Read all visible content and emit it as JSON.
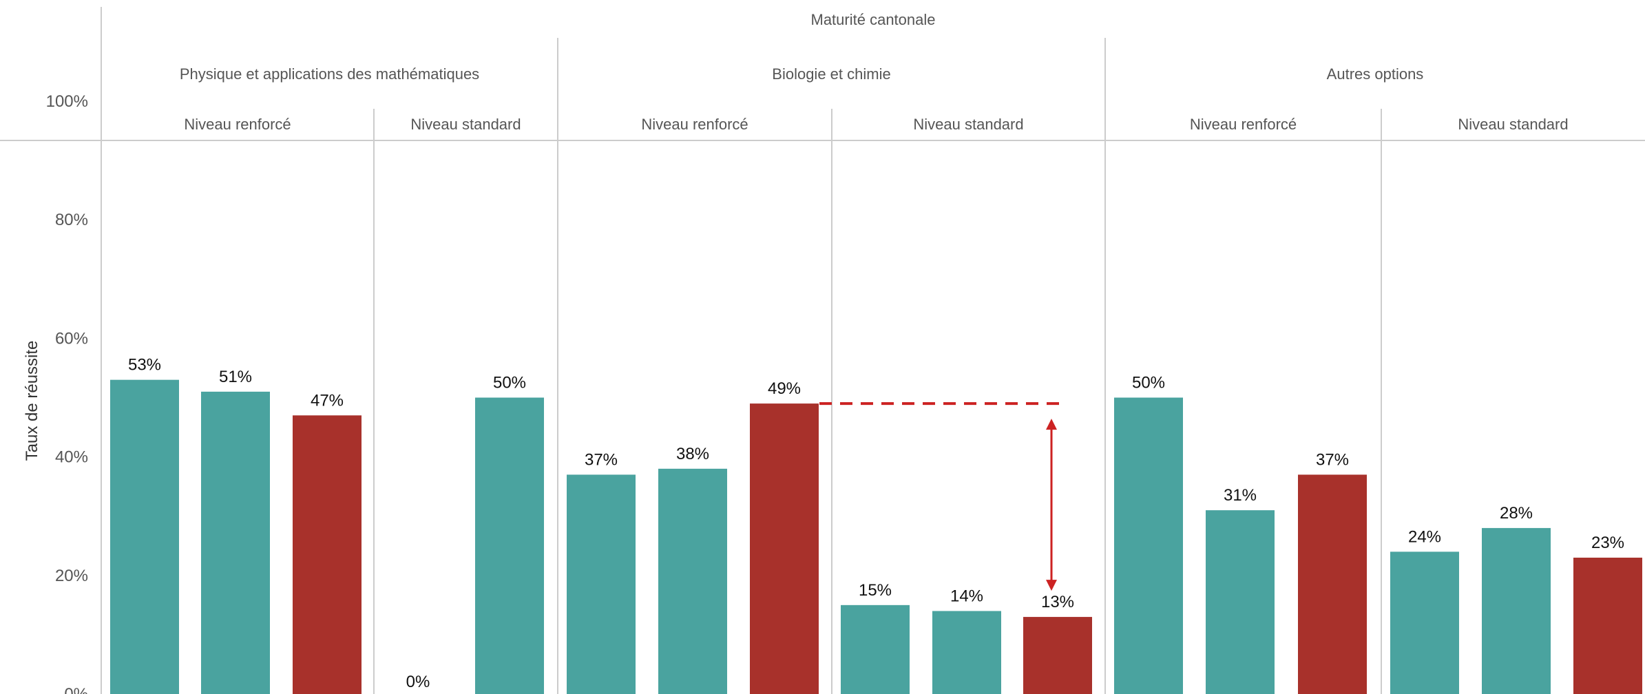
{
  "chart_data": {
    "type": "bar",
    "title": "Maturité cantonale",
    "ylabel": "Taux de réussite",
    "ylim": [
      0,
      100
    ],
    "yticks": [
      "0%",
      "20%",
      "40%",
      "60%",
      "80%",
      "100%"
    ],
    "ytick_values": [
      0,
      20,
      40,
      60,
      80,
      100
    ],
    "colors": {
      "teal": "#4aa39f",
      "red": "#a8312b",
      "grid": "#cccccc",
      "annotation": "#cc2222"
    },
    "options": [
      {
        "name": "Physique et applications des mathématiques",
        "levels": [
          {
            "name": "Niveau renforcé",
            "bars": [
              {
                "value": 53,
                "label": "53%",
                "color": "teal"
              },
              {
                "value": 51,
                "label": "51%",
                "color": "teal"
              },
              {
                "value": 47,
                "label": "47%",
                "color": "red"
              }
            ]
          },
          {
            "name": "Niveau standard",
            "bars": [
              {
                "value": 0,
                "label": "0%",
                "color": "teal"
              },
              {
                "value": 50,
                "label": "50%",
                "color": "teal"
              }
            ]
          }
        ]
      },
      {
        "name": "Biologie et chimie",
        "levels": [
          {
            "name": "Niveau renforcé",
            "bars": [
              {
                "value": 37,
                "label": "37%",
                "color": "teal"
              },
              {
                "value": 38,
                "label": "38%",
                "color": "teal"
              },
              {
                "value": 49,
                "label": "49%",
                "color": "red"
              }
            ]
          },
          {
            "name": "Niveau standard",
            "bars": [
              {
                "value": 15,
                "label": "15%",
                "color": "teal"
              },
              {
                "value": 14,
                "label": "14%",
                "color": "teal"
              },
              {
                "value": 13,
                "label": "13%",
                "color": "red"
              }
            ]
          }
        ]
      },
      {
        "name": "Autres options",
        "levels": [
          {
            "name": "Niveau renforcé",
            "bars": [
              {
                "value": 50,
                "label": "50%",
                "color": "teal"
              },
              {
                "value": 31,
                "label": "31%",
                "color": "teal"
              },
              {
                "value": 37,
                "label": "37%",
                "color": "red"
              }
            ]
          },
          {
            "name": "Niveau standard",
            "bars": [
              {
                "value": 24,
                "label": "24%",
                "color": "teal"
              },
              {
                "value": 28,
                "label": "28%",
                "color": "teal"
              },
              {
                "value": 23,
                "label": "23%",
                "color": "red"
              }
            ]
          }
        ]
      }
    ],
    "annotation": {
      "type": "gap-arrow",
      "from_value": 49,
      "to_value": 13
    }
  }
}
